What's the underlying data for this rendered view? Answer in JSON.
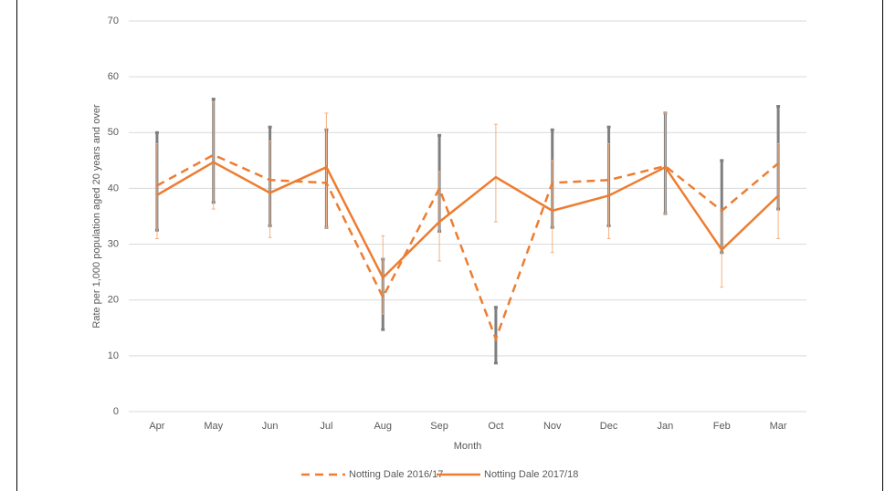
{
  "chart_data": {
    "type": "line",
    "x_label": "Month",
    "y_label": "Rate per 1,000 population aged 20 years and over",
    "categories": [
      "Apr",
      "May",
      "Jun",
      "Jul",
      "Aug",
      "Sep",
      "Oct",
      "Nov",
      "Dec",
      "Jan",
      "Feb",
      "Mar"
    ],
    "ylim": [
      0,
      70
    ],
    "yticks": [
      0,
      10,
      20,
      30,
      40,
      50,
      60,
      70
    ],
    "grid": true,
    "legend": "bottom",
    "series": [
      {
        "name": "Notting Dale 2016/17",
        "color": "#ed7d31",
        "dash": true,
        "error_color": "#7f7f7f",
        "values": [
          40.5,
          46,
          41.5,
          41,
          20.5,
          40,
          13,
          41,
          41.5,
          44,
          36,
          44.5
        ],
        "lower": [
          32.5,
          37.5,
          33.3,
          33,
          14.7,
          32.3,
          8.7,
          33,
          33.3,
          35.5,
          28.5,
          36.3
        ],
        "upper": [
          50,
          56,
          51,
          50.5,
          27.3,
          49.5,
          18.7,
          50.5,
          51,
          53.5,
          45,
          54.7
        ]
      },
      {
        "name": "Notting Dale 2017/18",
        "color": "#ed7d31",
        "dash": false,
        "error_color": "#f4b183",
        "values": [
          38.8,
          44.7,
          39.2,
          43.8,
          24,
          34,
          42,
          36,
          38.7,
          43.8,
          29,
          38.7
        ],
        "lower": [
          31,
          36.3,
          31.2,
          33,
          17.5,
          27,
          34,
          28.5,
          31,
          35.5,
          22.3,
          31
        ],
        "upper": [
          48,
          55.5,
          48.5,
          53.5,
          31.5,
          43,
          51.5,
          45,
          48,
          53.5,
          36,
          48
        ]
      }
    ]
  }
}
